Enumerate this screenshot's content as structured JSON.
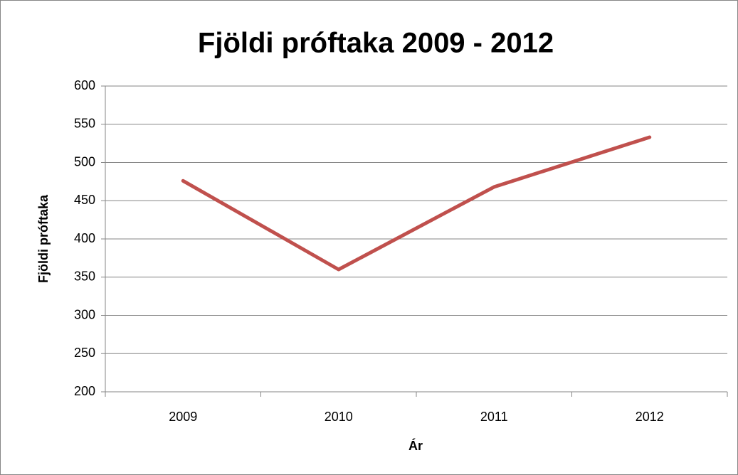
{
  "chart_data": {
    "type": "line",
    "title": "Fjöldi próftaka 2009 - 2012",
    "x_label": "Ár",
    "y_label": "Fjöldi próftaka",
    "categories": [
      "2009",
      "2010",
      "2011",
      "2012"
    ],
    "series": [
      {
        "name": "Fjöldi próftaka",
        "color": "#c0504d",
        "values": [
          476,
          360,
          468,
          533
        ]
      }
    ],
    "ylim": [
      200,
      600
    ],
    "yticks": [
      200,
      250,
      300,
      350,
      400,
      450,
      500,
      550,
      600
    ],
    "grid": true
  }
}
